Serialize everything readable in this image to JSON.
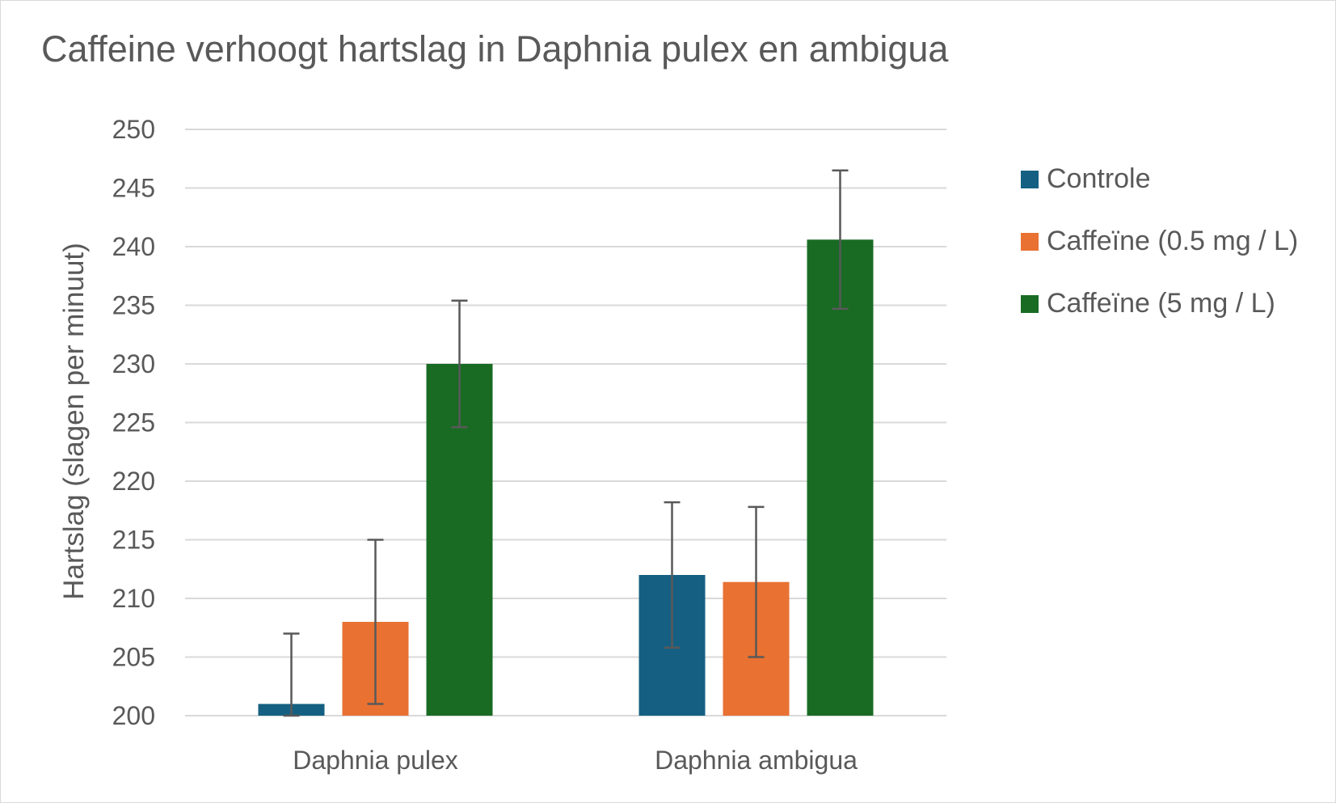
{
  "chart_data": {
    "type": "bar",
    "title": "Caffeine verhoogt hartslag in Daphnia pulex en ambigua",
    "xlabel": "",
    "ylabel": "Hartslag (slagen per minuut)",
    "ylim": [
      200,
      250
    ],
    "yticks": [
      200,
      205,
      210,
      215,
      220,
      225,
      230,
      235,
      240,
      245,
      250
    ],
    "categories": [
      "Daphnia pulex",
      "Daphnia ambigua"
    ],
    "series": [
      {
        "name": "Controle",
        "color": "#156082",
        "values": [
          201,
          212
        ],
        "errors": [
          6,
          6.2
        ]
      },
      {
        "name": "Caffeïne (0.5 mg / L)",
        "color": "#E97132",
        "values": [
          208,
          211.4
        ],
        "errors": [
          7,
          6.4
        ]
      },
      {
        "name": "Caffeïne (5 mg / L)",
        "color": "#196B24",
        "values": [
          230,
          240.6
        ],
        "errors": [
          5.4,
          5.9
        ]
      }
    ],
    "grid": true,
    "legend_position": "right"
  }
}
